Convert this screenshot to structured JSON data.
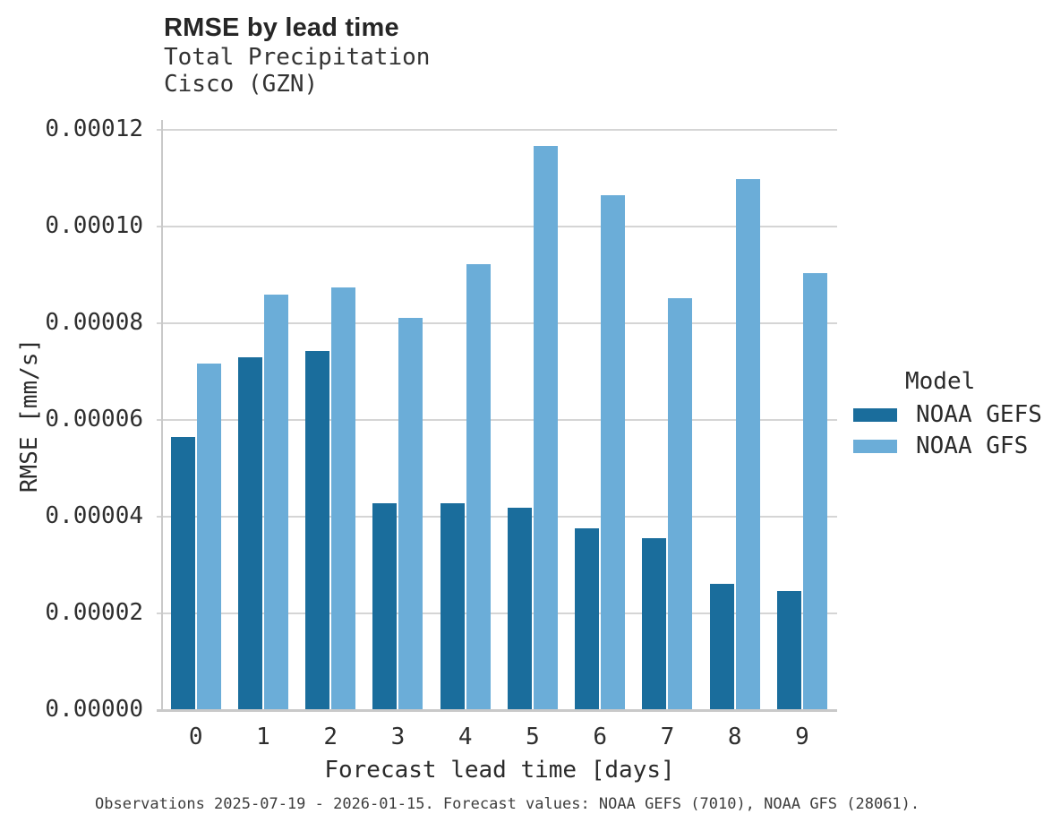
{
  "caption": "Observations 2025-07-19 - 2026-01-15. Forecast values: NOAA GEFS (7010), NOAA GFS (28061).",
  "colors": {
    "gefs_bar": "#1a6d9c",
    "gfs_bar": "#6badd8",
    "gridline": "#d5d5d5",
    "axis_line": "#c9c9c9",
    "text": "#2b2b2b"
  },
  "chart_data": {
    "type": "bar",
    "title": "RMSE by lead time",
    "subtitle": [
      "Total Precipitation",
      "Cisco (GZN)"
    ],
    "xlabel": "Forecast lead time [days]",
    "ylabel": "RMSE [mm/s]",
    "categories": [
      "0",
      "1",
      "2",
      "3",
      "4",
      "5",
      "6",
      "7",
      "8",
      "9"
    ],
    "series": [
      {
        "name": "NOAA GEFS",
        "color": "#1a6d9c",
        "values": [
          5.64e-05,
          7.29e-05,
          7.43e-05,
          4.27e-05,
          4.27e-05,
          4.18e-05,
          3.76e-05,
          3.56e-05,
          2.61e-05,
          2.46e-05
        ]
      },
      {
        "name": "NOAA GFS",
        "color": "#6badd8",
        "values": [
          7.17e-05,
          8.6e-05,
          8.75e-05,
          8.12e-05,
          9.22e-05,
          0.0001166,
          0.0001064,
          8.52e-05,
          0.0001099,
          9.03e-05
        ]
      }
    ],
    "ylim": [
      0,
      0.00012
    ],
    "yticks": [
      {
        "value": 0.0,
        "label": "0.00000"
      },
      {
        "value": 2e-05,
        "label": "0.00002"
      },
      {
        "value": 4e-05,
        "label": "0.00004"
      },
      {
        "value": 6e-05,
        "label": "0.00006"
      },
      {
        "value": 8e-05,
        "label": "0.00008"
      },
      {
        "value": 0.0001,
        "label": "0.00010"
      },
      {
        "value": 0.00012,
        "label": "0.00012"
      }
    ],
    "grid": "horizontal",
    "legend": {
      "title": "Model",
      "position": "right"
    }
  }
}
